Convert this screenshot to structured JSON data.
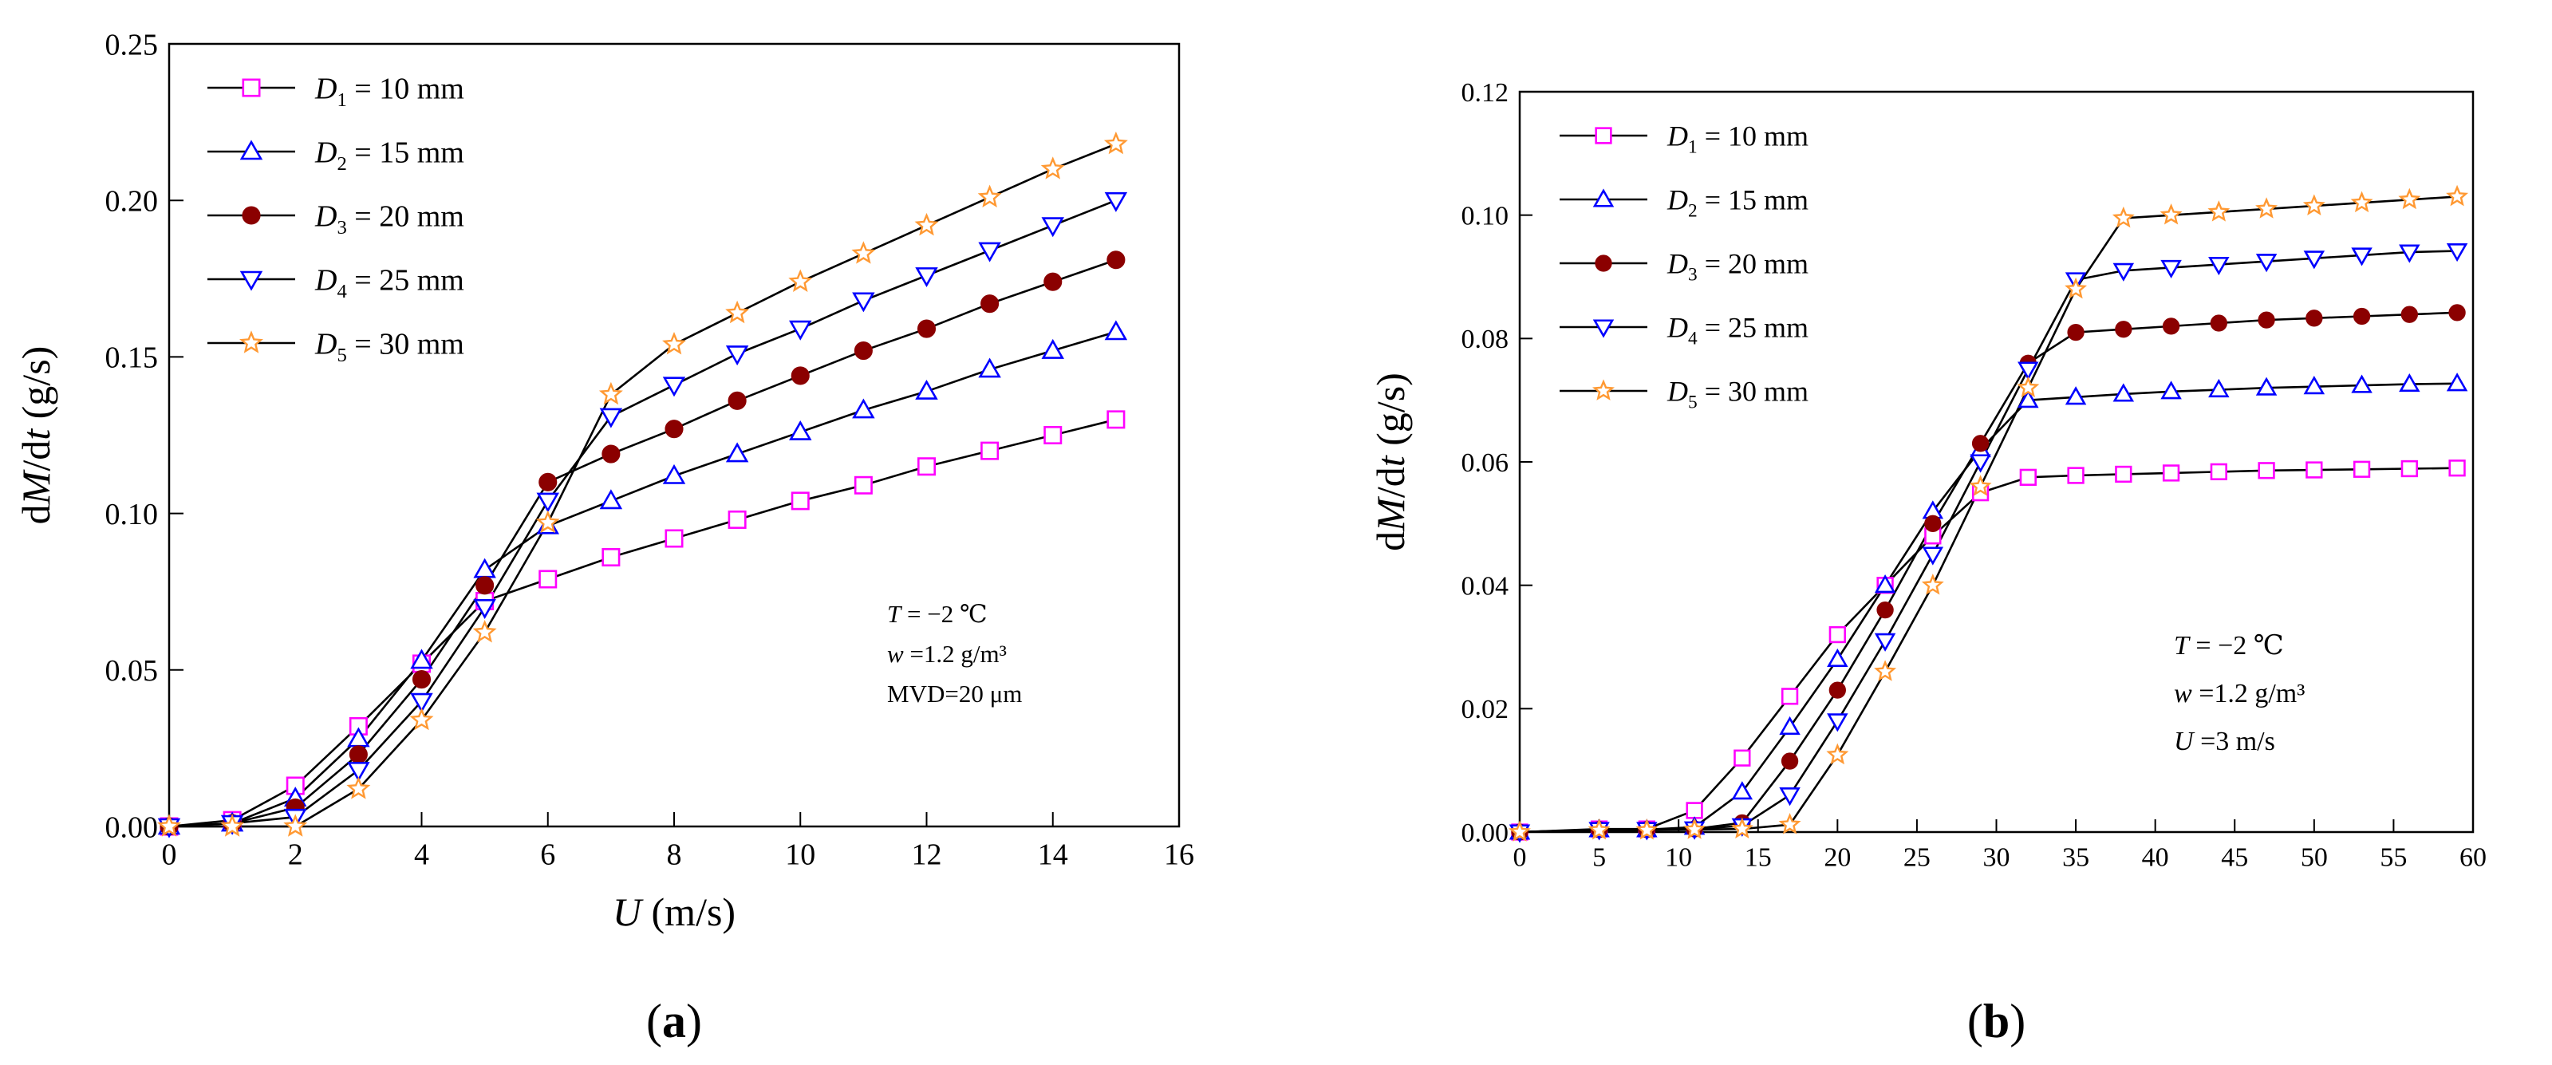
{
  "chart_data": [
    {
      "panel_label": "(a)",
      "type": "line",
      "title": "",
      "ylabel": "dM/dt (g/s)",
      "xlabel": "U (m/s)",
      "xlim": [
        0,
        16
      ],
      "ylim": [
        0,
        0.25
      ],
      "xticks": [
        0,
        2,
        4,
        6,
        8,
        10,
        12,
        14,
        16
      ],
      "yticks": [
        0.0,
        0.05,
        0.1,
        0.15,
        0.2,
        0.25
      ],
      "ytick_labels": [
        "0.00",
        "0.05",
        "0.10",
        "0.15",
        "0.20",
        "0.25"
      ],
      "xtick_labels": [
        "0",
        "2",
        "4",
        "6",
        "8",
        "10",
        "12",
        "14",
        "16"
      ],
      "legend_position": "top-left",
      "annotation": [
        "T = −2 ℃",
        "w =1.2 g/m³",
        "MVD=20 μm"
      ],
      "x": [
        0,
        1,
        2,
        3,
        4,
        5,
        6,
        7,
        8,
        9,
        10,
        11,
        12,
        13,
        14,
        15
      ],
      "series": [
        {
          "name": "D1 = 10 mm",
          "sym": "D",
          "sub": "1",
          "rest": " = 10 mm",
          "marker": "square",
          "color": "#ff00ff",
          "values": [
            0,
            0.002,
            0.013,
            0.032,
            0.052,
            0.072,
            0.079,
            0.086,
            0.092,
            0.098,
            0.104,
            0.109,
            0.115,
            0.12,
            0.125,
            0.13
          ]
        },
        {
          "name": "D2 = 15 mm",
          "sym": "D",
          "sub": "2",
          "rest": " = 15 mm",
          "marker": "triangle-up",
          "color": "#0000ff",
          "values": [
            0,
            0.001,
            0.009,
            0.028,
            0.053,
            0.082,
            0.096,
            0.104,
            0.112,
            0.119,
            0.126,
            0.133,
            0.139,
            0.146,
            0.152,
            0.158
          ]
        },
        {
          "name": "D3 = 20 mm",
          "sym": "D",
          "sub": "3",
          "rest": " = 20 mm",
          "marker": "circle",
          "color": "#8b0000",
          "values": [
            0,
            0.001,
            0.006,
            0.023,
            0.047,
            0.077,
            0.11,
            0.119,
            0.127,
            0.136,
            0.144,
            0.152,
            0.159,
            0.167,
            0.174,
            0.181
          ]
        },
        {
          "name": "D4 = 25 mm",
          "sym": "D",
          "sub": "4",
          "rest": " = 25 mm",
          "marker": "triangle-down",
          "color": "#0000ff",
          "values": [
            0,
            0.001,
            0.003,
            0.018,
            0.04,
            0.07,
            0.104,
            0.131,
            0.141,
            0.151,
            0.159,
            0.168,
            0.176,
            0.184,
            0.192,
            0.2
          ]
        },
        {
          "name": "D5 = 30 mm",
          "sym": "D",
          "sub": "5",
          "rest": " = 30 mm",
          "marker": "star",
          "color": "#ff9933",
          "values": [
            0,
            0.0,
            0.0,
            0.012,
            0.034,
            0.062,
            0.097,
            0.138,
            0.154,
            0.164,
            0.174,
            0.183,
            0.192,
            0.201,
            0.21,
            0.218
          ]
        }
      ]
    },
    {
      "panel_label": "(b)",
      "type": "line",
      "title": "",
      "ylabel": "dM/dt (g/s)",
      "xlabel": "",
      "xlim": [
        0,
        60
      ],
      "ylim": [
        0,
        0.12
      ],
      "xticks": [
        0,
        5,
        10,
        15,
        20,
        25,
        30,
        35,
        40,
        45,
        50,
        55,
        60
      ],
      "yticks": [
        0.0,
        0.02,
        0.04,
        0.06,
        0.08,
        0.1,
        0.12
      ],
      "ytick_labels": [
        "0.00",
        "0.02",
        "0.04",
        "0.06",
        "0.08",
        "0.10",
        "0.12"
      ],
      "xtick_labels": [
        "0",
        "5",
        "10",
        "15",
        "20",
        "25",
        "30",
        "35",
        "40",
        "45",
        "50",
        "55",
        "60"
      ],
      "legend_position": "top-left",
      "annotation": [
        "T = −2 ℃",
        "w =1.2 g/m³",
        "U =3 m/s"
      ],
      "x": [
        0,
        5,
        8,
        11,
        14,
        17,
        20,
        23,
        26,
        29,
        32,
        35,
        38,
        41,
        44,
        47,
        50,
        53,
        56,
        59
      ],
      "series": [
        {
          "name": "D1 = 10 mm",
          "sym": "D",
          "sub": "1",
          "rest": " = 10 mm",
          "marker": "square",
          "color": "#ff00ff",
          "values": [
            0,
            0.0005,
            0.0005,
            0.0035,
            0.012,
            0.022,
            0.032,
            0.04,
            0.048,
            0.055,
            0.0575,
            0.0578,
            0.058,
            0.0582,
            0.0584,
            0.0586,
            0.0587,
            0.0588,
            0.0589,
            0.059
          ]
        },
        {
          "name": "D2 = 15 mm",
          "sym": "D",
          "sub": "2",
          "rest": " = 15 mm",
          "marker": "triangle-up",
          "color": "#0000ff",
          "values": [
            0,
            0.0004,
            0.0004,
            0.0008,
            0.0065,
            0.017,
            0.028,
            0.04,
            0.052,
            0.062,
            0.07,
            0.0705,
            0.071,
            0.0714,
            0.0717,
            0.072,
            0.0722,
            0.0724,
            0.0726,
            0.0727
          ]
        },
        {
          "name": "D3 = 20 mm",
          "sym": "D",
          "sub": "3",
          "rest": " = 20 mm",
          "marker": "circle",
          "color": "#8b0000",
          "values": [
            0,
            0.0004,
            0.0004,
            0.0005,
            0.0015,
            0.0115,
            0.023,
            0.036,
            0.05,
            0.063,
            0.076,
            0.081,
            0.0815,
            0.082,
            0.0825,
            0.083,
            0.0833,
            0.0836,
            0.0839,
            0.0842
          ]
        },
        {
          "name": "D4 = 25 mm",
          "sym": "D",
          "sub": "4",
          "rest": " = 25 mm",
          "marker": "triangle-down",
          "color": "#0000ff",
          "values": [
            0,
            0.0004,
            0.0004,
            0.0005,
            0.001,
            0.006,
            0.018,
            0.031,
            0.045,
            0.06,
            0.075,
            0.0895,
            0.091,
            0.0915,
            0.092,
            0.0925,
            0.093,
            0.0935,
            0.094,
            0.0942
          ]
        },
        {
          "name": "D5 = 30 mm",
          "sym": "D",
          "sub": "5",
          "rest": " = 30 mm",
          "marker": "star",
          "color": "#ff9933",
          "values": [
            0,
            0.0003,
            0.0003,
            0.0004,
            0.0005,
            0.0012,
            0.0125,
            0.026,
            0.04,
            0.056,
            0.072,
            0.088,
            0.0995,
            0.1,
            0.1005,
            0.101,
            0.1015,
            0.102,
            0.1025,
            0.103
          ]
        }
      ]
    }
  ]
}
